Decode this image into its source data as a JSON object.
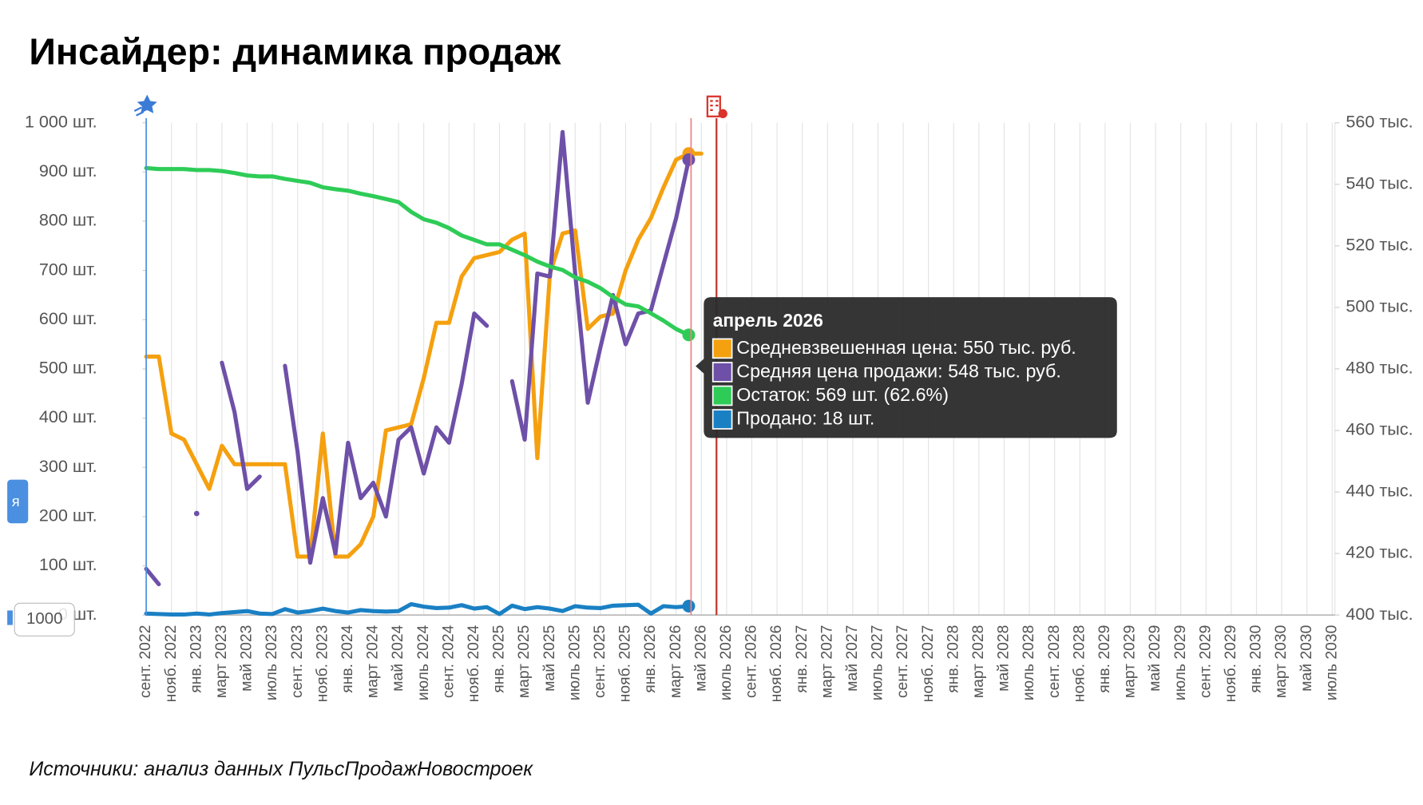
{
  "chart_data": {
    "type": "line",
    "title": "Инсайдер: динамика продаж",
    "source": "Источники: анализ данных ПульсПродажНовостроек",
    "side_tab": "я",
    "button": "1000",
    "categories": [
      "сент. 2022",
      null,
      "нояб. 2022",
      null,
      "янв. 2023",
      null,
      "март 2023",
      null,
      "май 2023",
      null,
      "июль 2023",
      null,
      "сент. 2023",
      null,
      "нояб. 2023",
      null,
      "янв. 2024",
      null,
      "март 2024",
      null,
      "май 2024",
      null,
      "июль 2024",
      null,
      "сент. 2024",
      null,
      "нояб. 2024",
      null,
      "янв. 2025",
      null,
      "март 2025",
      null,
      "май 2025",
      null,
      "июль 2025",
      null,
      "сент. 2025",
      null,
      "нояб. 2025",
      null,
      "янв. 2026",
      null,
      "март 2026",
      null,
      "май 2026",
      null,
      "июль 2026",
      null,
      "сент. 2026",
      null,
      "нояб. 2026",
      null,
      "янв. 2027",
      null,
      "март 2027",
      null,
      "май 2027",
      null,
      "июль 2027",
      null,
      "сент. 2027",
      null,
      "нояб. 2027",
      null,
      "янв. 2028",
      null,
      "март 2028",
      null,
      "май 2028",
      null,
      "июль 2028",
      null,
      "сент. 2028",
      null,
      "нояб. 2028",
      null,
      "янв. 2029",
      null,
      "март 2029",
      null,
      "май 2029",
      null,
      "июль 2029",
      null,
      "сент. 2029",
      null,
      "нояб. 2029",
      null,
      "янв. 2030",
      null,
      "март 2030",
      null,
      "май 2030",
      null,
      "июль 2030"
    ],
    "series": [
      {
        "name": "Средневзвешенная цена",
        "color": "#f5a00f",
        "axis": "y2",
        "values": [
          484,
          484,
          459,
          457,
          449,
          441,
          455,
          449,
          449,
          449,
          449,
          449,
          419,
          419,
          459,
          419,
          419,
          423,
          432,
          460,
          461,
          462,
          477,
          495,
          495,
          510,
          516,
          517,
          518,
          522,
          524,
          451,
          511,
          524,
          525,
          493,
          497,
          498,
          512,
          522,
          529,
          539,
          548,
          550,
          550,
          null,
          null,
          null,
          null,
          null,
          null,
          null,
          null,
          null,
          null,
          null,
          null,
          null,
          null,
          null,
          null,
          null,
          null,
          null,
          null,
          null,
          null,
          null,
          null,
          null,
          null,
          null,
          null,
          null,
          null,
          null,
          null,
          null,
          null,
          null,
          null,
          null,
          null,
          null,
          null,
          null,
          null,
          null,
          null,
          null,
          null,
          null,
          null,
          null,
          null
        ]
      },
      {
        "name": "Средняя цена продажи",
        "color": "#6e50a8",
        "axis": "y2",
        "values": [
          415,
          410,
          null,
          null,
          433,
          null,
          482,
          466,
          441,
          445,
          null,
          481,
          453,
          417,
          438,
          420,
          456,
          438,
          443,
          432,
          457,
          461,
          446,
          461,
          456,
          475,
          498,
          494,
          null,
          476,
          457,
          511,
          510,
          557,
          511,
          469,
          487,
          504,
          488,
          498,
          499,
          514,
          529,
          548,
          null,
          null,
          null,
          null,
          null,
          null,
          null,
          null,
          null,
          null,
          null,
          null,
          null,
          null,
          null,
          null,
          null,
          null,
          null,
          null,
          null,
          null,
          null,
          null,
          null,
          null,
          null,
          null,
          null,
          null,
          null,
          null,
          null,
          null,
          null,
          null,
          null,
          null,
          null,
          null,
          null,
          null,
          null,
          null,
          null,
          null,
          null,
          null,
          null,
          null,
          null
        ]
      },
      {
        "name": "Остаток",
        "color": "#2ecc57",
        "values": [
          908,
          906,
          906,
          906,
          904,
          904,
          902,
          898,
          893,
          891,
          891,
          886,
          882,
          878,
          869,
          865,
          862,
          856,
          851,
          845,
          839,
          819,
          804,
          797,
          786,
          771,
          762,
          753,
          753,
          742,
          731,
          718,
          708,
          701,
          686,
          677,
          664,
          646,
          631,
          627,
          613,
          598,
          581,
          569,
          null,
          null,
          null,
          null,
          null,
          null,
          null,
          null,
          null,
          null,
          null,
          null,
          null,
          null,
          null,
          null,
          null,
          null,
          null,
          null,
          null,
          null,
          null,
          null,
          null,
          null,
          null,
          null,
          null,
          null,
          null,
          null,
          null,
          null,
          null,
          null,
          null,
          null,
          null,
          null,
          null,
          null,
          null,
          null,
          null,
          null,
          null,
          null,
          null,
          null,
          null
        ]
      },
      {
        "name": "Продано",
        "color": "#1a80c4",
        "values": [
          3,
          2,
          1,
          1,
          3,
          1,
          4,
          6,
          8,
          3,
          2,
          12,
          5,
          8,
          13,
          8,
          5,
          10,
          8,
          7,
          8,
          22,
          17,
          14,
          15,
          20,
          13,
          16,
          2,
          19,
          12,
          16,
          13,
          8,
          18,
          15,
          14,
          19,
          20,
          21,
          3,
          18,
          16,
          18,
          null,
          null,
          null,
          null,
          null,
          null,
          null,
          null,
          null,
          null,
          null,
          null,
          null,
          null,
          null,
          null,
          null,
          null,
          null,
          null,
          null,
          null,
          null,
          null,
          null,
          null,
          null,
          null,
          null,
          null,
          null,
          null,
          null,
          null,
          null,
          null,
          null,
          null,
          null,
          null,
          null,
          null,
          null,
          null,
          null,
          null,
          null,
          null,
          null,
          null,
          null
        ]
      }
    ],
    "ylim": [
      0,
      1000
    ],
    "yticks": [
      {
        "value": 0,
        "label": "0 шт."
      },
      {
        "value": 100,
        "label": "100 шт."
      },
      {
        "value": 200,
        "label": "200 шт."
      },
      {
        "value": 300,
        "label": "300 шт."
      },
      {
        "value": 400,
        "label": "400 шт."
      },
      {
        "value": 500,
        "label": "500 шт."
      },
      {
        "value": 600,
        "label": "600 шт."
      },
      {
        "value": 700,
        "label": "700 шт."
      },
      {
        "value": 800,
        "label": "800 шт."
      },
      {
        "value": 900,
        "label": "900 шт."
      },
      {
        "value": 1000,
        "label": "1 000 шт."
      }
    ],
    "y2lim": [
      400,
      560
    ],
    "y2ticks": [
      {
        "value": 400,
        "label": "400 тыс."
      },
      {
        "value": 420,
        "label": "420 тыс."
      },
      {
        "value": 440,
        "label": "440 тыс."
      },
      {
        "value": 460,
        "label": "460 тыс."
      },
      {
        "value": 480,
        "label": "480 тыс."
      },
      {
        "value": 500,
        "label": "500 тыс."
      },
      {
        "value": 520,
        "label": "520 тыс."
      },
      {
        "value": 540,
        "label": "540 тыс."
      },
      {
        "value": 560,
        "label": "560 тыс."
      }
    ],
    "grid": true,
    "tooltip": {
      "title": "апрель 2026",
      "items": [
        "Средневзвешенная цена: 550 тыс. руб.",
        "Средняя цена продажи: 548 тыс. руб.",
        "Остаток: 569 шт. (62.6%)",
        "Продано: 18 шт."
      ]
    }
  }
}
